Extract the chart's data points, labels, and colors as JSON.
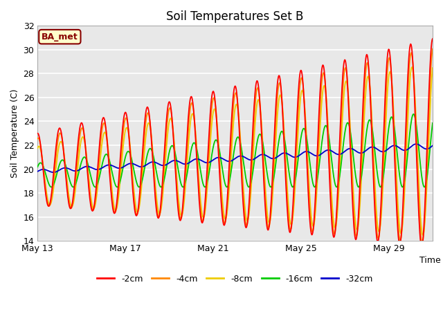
{
  "title": "Soil Temperatures Set B",
  "xlabel": "Time",
  "ylabel": "Soil Temperature (C)",
  "ylim": [
    14,
    32
  ],
  "xlim_days": [
    0,
    18
  ],
  "x_ticks_pos": [
    0,
    4,
    8,
    12,
    16
  ],
  "x_tick_labels": [
    "May 13",
    "May 17",
    "May 21",
    "May 25",
    "May 29"
  ],
  "y_ticks": [
    14,
    16,
    18,
    20,
    22,
    24,
    26,
    28,
    30,
    32
  ],
  "series_colors": [
    "#ff0000",
    "#ff8800",
    "#eecc00",
    "#00cc00",
    "#0000cc"
  ],
  "series_labels": [
    "-2cm",
    "-4cm",
    "-8cm",
    "-16cm",
    "-32cm"
  ],
  "annotation_text": "BA_met",
  "annotation_color": "#880000",
  "annotation_bg": "#ffffcc",
  "bg_color": "#ffffff",
  "plot_bg_color": "#e8e8e8",
  "grid_color": "#ffffff",
  "title_fontsize": 12
}
